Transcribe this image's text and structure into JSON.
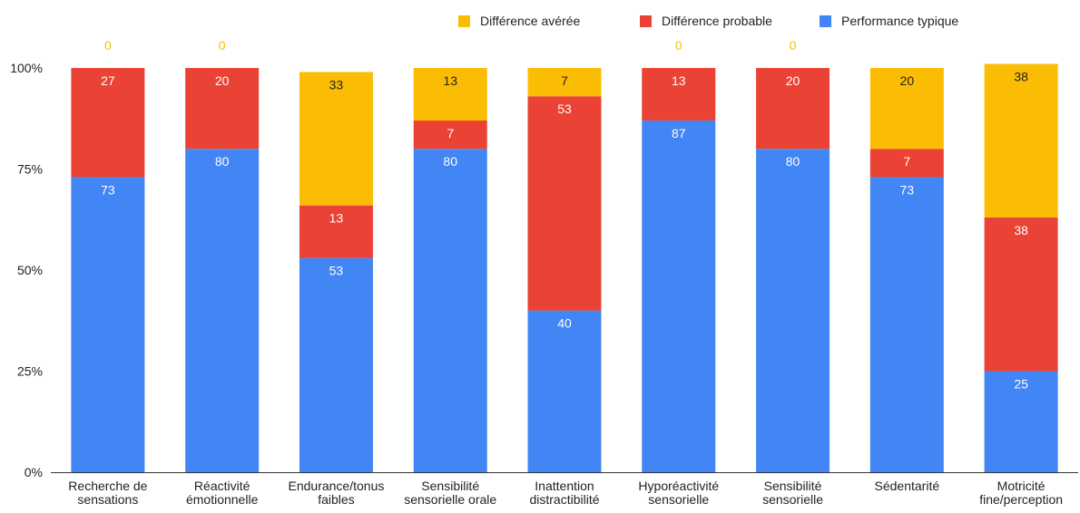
{
  "chart_data": {
    "type": "bar",
    "stacked": true,
    "percent": true,
    "categories": [
      [
        "Recherche de",
        "sensations"
      ],
      [
        "Réactivité",
        "émotionnelle"
      ],
      [
        "Endurance/tonus",
        "faibles"
      ],
      [
        "Sensibilité",
        "sensorielle orale"
      ],
      [
        "Inattention",
        "distractibilité"
      ],
      [
        "Hyporéactivité",
        "sensorielle"
      ],
      [
        "Sensibilité",
        "sensorielle"
      ],
      [
        "Sédentarité"
      ],
      [
        "Motricité",
        "fine/perception"
      ]
    ],
    "series": [
      {
        "name": "Performance typique",
        "color": "#4285f4",
        "label_color": "#ffffff",
        "values": [
          73,
          80,
          53,
          80,
          40,
          87,
          80,
          73,
          25
        ]
      },
      {
        "name": "Différence probable",
        "color": "#ea4335",
        "label_color": "#ffffff",
        "values": [
          27,
          20,
          13,
          7,
          53,
          13,
          20,
          7,
          38
        ]
      },
      {
        "name": "Différence avérée",
        "color": "#fbbc04",
        "label_color": "#222222",
        "zero_label_color": "#fbbc04",
        "values": [
          0,
          0,
          33,
          13,
          7,
          0,
          0,
          20,
          38
        ]
      }
    ],
    "legend_order": [
      "Différence avérée",
      "Différence probable",
      "Performance typique"
    ],
    "legend_position": "top-right",
    "y_ticks": [
      "0%",
      "25%",
      "50%",
      "75%",
      "100%"
    ],
    "ylim": [
      0,
      100
    ],
    "grid": false
  }
}
